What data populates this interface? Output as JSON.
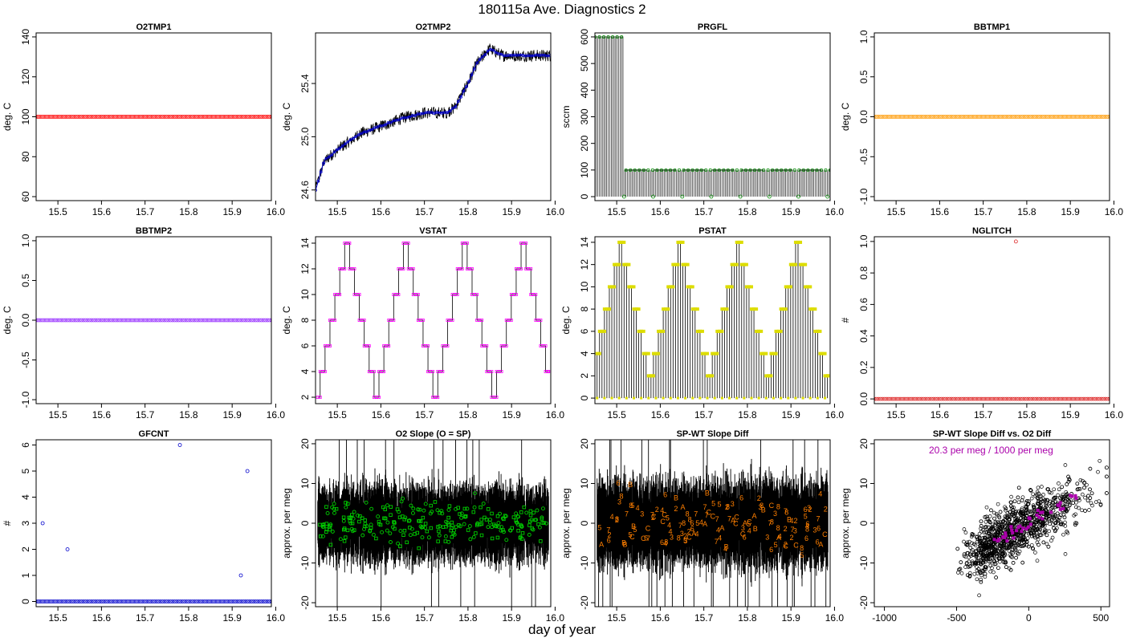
{
  "figure_title": "180115a   Ave. Diagnostics 2",
  "x_caption": "day of year",
  "chart_data": [
    {
      "id": "o2tmp1",
      "type": "scatter",
      "title": "O2TMP1",
      "ylabel": "deg. C",
      "xlim": [
        15.45,
        15.99
      ],
      "ylim": [
        58,
        142
      ],
      "yticks": [
        "60",
        "80",
        "100",
        "120",
        "140"
      ],
      "xticks": [
        "15.5",
        "15.6",
        "15.7",
        "15.8",
        "15.9",
        "16.0"
      ],
      "xtick_values": [
        15.5,
        15.6,
        15.7,
        15.8,
        15.9,
        16.0
      ],
      "series": [
        {
          "name": "O2TMP1",
          "color": "#ff0000",
          "kind": "constant",
          "value": 100,
          "x_start": 15.45,
          "x_end": 15.99
        }
      ]
    },
    {
      "id": "o2tmp2",
      "type": "line",
      "title": "O2TMP2",
      "ylabel": "deg. C",
      "xlim": [
        15.45,
        15.99
      ],
      "ylim": [
        24.52,
        25.78
      ],
      "yticks": [
        "24.6",
        "25.0",
        "25.4"
      ],
      "xticks": [
        "15.5",
        "15.6",
        "15.7",
        "15.8",
        "15.9",
        "16.0"
      ],
      "xtick_values": [
        15.5,
        15.6,
        15.7,
        15.8,
        15.9,
        16.0
      ],
      "series": [
        {
          "name": "O2TMP2 trace",
          "color": "#000000",
          "kind": "noisy_trace",
          "x": [
            15.45,
            15.47,
            15.5,
            15.55,
            15.6,
            15.65,
            15.7,
            15.75,
            15.77,
            15.8,
            15.82,
            15.85,
            15.88,
            15.92,
            15.99
          ],
          "y": [
            24.6,
            24.82,
            24.9,
            25.02,
            25.08,
            25.14,
            25.18,
            25.18,
            25.22,
            25.4,
            25.55,
            25.66,
            25.61,
            25.61,
            25.61
          ]
        },
        {
          "name": "O2TMP2 average",
          "color": "#0000cc",
          "kind": "average_points"
        }
      ]
    },
    {
      "id": "prgfl",
      "type": "line",
      "title": "PRGFL",
      "ylabel": "sccm",
      "xlim": [
        15.45,
        15.99
      ],
      "ylim": [
        -15,
        615
      ],
      "yticks": [
        "0",
        "100",
        "200",
        "300",
        "400",
        "500",
        "600"
      ],
      "xticks": [
        "15.5",
        "15.6",
        "15.7",
        "15.8",
        "15.9",
        "16.0"
      ],
      "xtick_values": [
        15.5,
        15.6,
        15.7,
        15.8,
        15.9,
        16.0
      ],
      "series": [
        {
          "name": "PRGFL",
          "color": "#000000",
          "kind": "purge_flow",
          "high_flow": 600,
          "low_flow": 100,
          "zero_flow": 0,
          "switch_x": 15.515
        },
        {
          "name": "PRGFL points",
          "color": "#008800",
          "kind": "average_points"
        }
      ]
    },
    {
      "id": "bbtmp1",
      "type": "scatter",
      "title": "BBTMP1",
      "ylabel": "deg. C",
      "xlim": [
        15.45,
        15.99
      ],
      "ylim": [
        -1.05,
        1.05
      ],
      "yticks": [
        "-1.0",
        "-0.5",
        "0.0",
        "0.5",
        "1.0"
      ],
      "xticks": [
        "15.5",
        "15.6",
        "15.7",
        "15.8",
        "15.9",
        "16.0"
      ],
      "xtick_values": [
        15.5,
        15.6,
        15.7,
        15.8,
        15.9,
        16.0
      ],
      "series": [
        {
          "name": "BBTMP1",
          "color": "#ff9900",
          "kind": "constant",
          "value": 0,
          "x_start": 15.45,
          "x_end": 15.99
        }
      ]
    },
    {
      "id": "bbtmp2",
      "type": "scatter",
      "title": "BBTMP2",
      "ylabel": "deg. C",
      "xlim": [
        15.45,
        15.99
      ],
      "ylim": [
        -1.05,
        1.05
      ],
      "yticks": [
        "-1.0",
        "-0.5",
        "0.0",
        "0.5",
        "1.0"
      ],
      "xticks": [
        "15.5",
        "15.6",
        "15.7",
        "15.8",
        "15.9",
        "16.0"
      ],
      "xtick_values": [
        15.5,
        15.6,
        15.7,
        15.8,
        15.9,
        16.0
      ],
      "series": [
        {
          "name": "BBTMP2",
          "color": "#9933ff",
          "kind": "constant",
          "value": 0,
          "x_start": 15.45,
          "x_end": 15.99
        }
      ]
    },
    {
      "id": "vstat",
      "type": "line",
      "title": "VSTAT",
      "ylabel": "deg. C",
      "xlim": [
        15.45,
        15.99
      ],
      "ylim": [
        1.5,
        14.5
      ],
      "yticks": [
        "2",
        "4",
        "6",
        "8",
        "10",
        "12",
        "14"
      ],
      "xticks": [
        "15.5",
        "15.6",
        "15.7",
        "15.8",
        "15.9",
        "16.0"
      ],
      "xtick_values": [
        15.5,
        15.6,
        15.7,
        15.8,
        15.9,
        16.0
      ],
      "series": [
        {
          "name": "VSTAT",
          "color": "#000000",
          "kind": "triangle_step",
          "min": 2,
          "max": 14,
          "peaks": [
            15.52,
            15.655,
            15.79,
            15.925
          ]
        },
        {
          "name": "VSTAT points",
          "color": "#ff00ff",
          "kind": "average_points"
        }
      ]
    },
    {
      "id": "pstat",
      "type": "line",
      "title": "PSTAT",
      "ylabel": "deg. C",
      "xlim": [
        15.45,
        15.99
      ],
      "ylim": [
        -0.5,
        14.5
      ],
      "yticks": [
        "0",
        "2",
        "4",
        "6",
        "8",
        "10",
        "12",
        "14"
      ],
      "xticks": [
        "15.5",
        "15.6",
        "15.7",
        "15.8",
        "15.9",
        "16.0"
      ],
      "xtick_values": [
        15.5,
        15.6,
        15.7,
        15.8,
        15.9,
        16.0
      ],
      "series": [
        {
          "name": "PSTAT",
          "color": "#000000",
          "kind": "triangle_spikes",
          "min": 2,
          "max": 14,
          "peaks": [
            15.51,
            15.645,
            15.78,
            15.915
          ]
        },
        {
          "name": "PSTAT points",
          "color": "#dddd00",
          "kind": "average_points"
        }
      ]
    },
    {
      "id": "nglitch",
      "type": "scatter",
      "title": "NGLITCH",
      "ylabel": "#",
      "xlim": [
        15.45,
        15.99
      ],
      "ylim": [
        -0.03,
        1.03
      ],
      "yticks": [
        "0.0",
        "0.2",
        "0.4",
        "0.6",
        "0.8",
        "1.0"
      ],
      "xticks": [
        "15.5",
        "15.6",
        "15.7",
        "15.8",
        "15.9",
        "16.0"
      ],
      "xtick_values": [
        15.5,
        15.6,
        15.7,
        15.8,
        15.9,
        16.0
      ],
      "series": [
        {
          "name": "NGLITCH",
          "color": "#dd2222",
          "kind": "constant",
          "value": 0,
          "x_start": 15.45,
          "x_end": 15.99,
          "outliers": [
            {
              "x": 15.775,
              "y": 1
            }
          ]
        }
      ]
    },
    {
      "id": "gfcnt",
      "type": "scatter",
      "title": "GFCNT",
      "ylabel": "#",
      "xlim": [
        15.45,
        15.99
      ],
      "ylim": [
        -0.2,
        6.2
      ],
      "yticks": [
        "0",
        "1",
        "2",
        "3",
        "4",
        "5",
        "6"
      ],
      "xticks": [
        "15.5",
        "15.6",
        "15.7",
        "15.8",
        "15.9",
        "16.0"
      ],
      "xtick_values": [
        15.5,
        15.6,
        15.7,
        15.8,
        15.9,
        16.0
      ],
      "series": [
        {
          "name": "GFCNT",
          "color": "#0000cc",
          "kind": "constant",
          "value": 0,
          "x_start": 15.45,
          "x_end": 15.99,
          "outliers": [
            {
              "x": 15.465,
              "y": 3
            },
            {
              "x": 15.522,
              "y": 2
            },
            {
              "x": 15.78,
              "y": 6
            },
            {
              "x": 15.92,
              "y": 1
            },
            {
              "x": 15.935,
              "y": 5
            }
          ]
        }
      ]
    },
    {
      "id": "o2slope",
      "type": "scatter",
      "title": "O2 Slope (O = SP)",
      "ylabel": "approx. per meg",
      "xlim": [
        15.45,
        15.99
      ],
      "ylim": [
        -21,
        21
      ],
      "yticks": [
        "-20",
        "-10",
        "0",
        "10",
        "20"
      ],
      "xticks": [
        "15.5",
        "15.6",
        "15.7",
        "15.8",
        "15.9",
        "16.0"
      ],
      "xtick_values": [
        15.5,
        15.6,
        15.7,
        15.8,
        15.9,
        16.0
      ],
      "series": [
        {
          "name": "O2 slope trace",
          "color": "#000000",
          "kind": "noise_band",
          "center": 0,
          "spread": 6
        },
        {
          "name": "SP points",
          "color": "#00cc00",
          "kind": "scatter_band",
          "center": 0,
          "spread": 6,
          "marker": "O"
        }
      ]
    },
    {
      "id": "spwt",
      "type": "scatter",
      "title": "SP-WT Slope Diff",
      "ylabel": "approx. per meg",
      "xlim": [
        15.45,
        15.99
      ],
      "ylim": [
        -21,
        21
      ],
      "yticks": [
        "-20",
        "-10",
        "0",
        "10",
        "20"
      ],
      "xticks": [
        "15.5",
        "15.6",
        "15.7",
        "15.8",
        "15.9",
        "16.0"
      ],
      "xtick_values": [
        15.5,
        15.6,
        15.7,
        15.8,
        15.9,
        16.0
      ],
      "series": [
        {
          "name": "SP-WT trace",
          "color": "#000000",
          "kind": "noise_band",
          "center": 0,
          "spread": 7
        },
        {
          "name": "tank labels",
          "color": "#ff7f00",
          "kind": "labels",
          "labels": [
            "2",
            "3",
            "4",
            "5",
            "6",
            "7",
            "8",
            "A",
            "B",
            "C"
          ]
        }
      ]
    },
    {
      "id": "spwt_vs_o2",
      "type": "scatter",
      "title": "SP-WT Slope Diff vs. O2 Diff",
      "ylabel": "approx. per meg",
      "xlim": [
        -1070,
        560
      ],
      "ylim": [
        -21,
        21
      ],
      "yticks": [
        "-20",
        "-10",
        "0",
        "10",
        "20"
      ],
      "xticks": [
        "-1000",
        "-500",
        "0",
        "500"
      ],
      "xtick_values": [
        -1000,
        -500,
        0,
        500
      ],
      "annotation": {
        "text": "20.3 per meg / 1000 per meg",
        "color": "#aa00aa"
      },
      "series": [
        {
          "name": "points",
          "color": "#000000",
          "kind": "cloud",
          "x_range": [
            -600,
            540
          ],
          "slope": 0.0203
        },
        {
          "name": "binned means",
          "color": "#aa00aa",
          "kind": "binned"
        }
      ]
    }
  ]
}
